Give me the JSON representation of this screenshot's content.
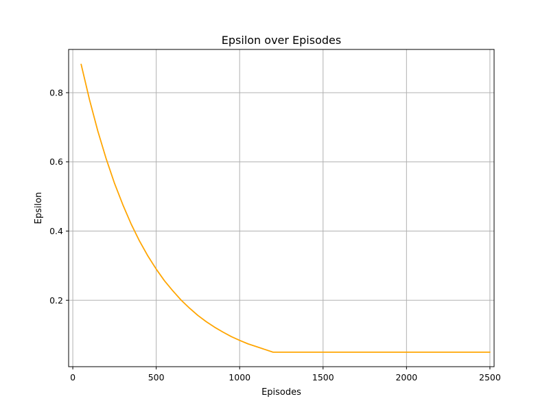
{
  "chart_data": {
    "type": "line",
    "title": "Epsilon over Episodes",
    "xlabel": "Episodes",
    "ylabel": "Epsilon",
    "xlim": [
      -25,
      2525
    ],
    "ylim": [
      0.008,
      0.925
    ],
    "xticks": [
      0,
      500,
      1000,
      1500,
      2000,
      2500
    ],
    "yticks": [
      0.2,
      0.4,
      0.6,
      0.8
    ],
    "grid": true,
    "series": [
      {
        "color": "#ffa500",
        "x": [
          50,
          100,
          150,
          200,
          250,
          300,
          350,
          400,
          450,
          500,
          550,
          600,
          650,
          700,
          750,
          800,
          850,
          900,
          950,
          1000,
          1050,
          1100,
          1150,
          1200,
          1250,
          1300,
          1350,
          1400,
          1450,
          1500,
          1550,
          1600,
          1650,
          1700,
          1750,
          1800,
          1850,
          1900,
          1950,
          2000,
          2050,
          2100,
          2150,
          2200,
          2250,
          2300,
          2350,
          2400,
          2450,
          2500
        ],
        "y": [
          0.882,
          0.78,
          0.689,
          0.609,
          0.538,
          0.476,
          0.42,
          0.371,
          0.328,
          0.29,
          0.256,
          0.227,
          0.2,
          0.177,
          0.156,
          0.138,
          0.122,
          0.108,
          0.095,
          0.084,
          0.074,
          0.066,
          0.058,
          0.05,
          0.05,
          0.05,
          0.05,
          0.05,
          0.05,
          0.05,
          0.05,
          0.05,
          0.05,
          0.05,
          0.05,
          0.05,
          0.05,
          0.05,
          0.05,
          0.05,
          0.05,
          0.05,
          0.05,
          0.05,
          0.05,
          0.05,
          0.05,
          0.05,
          0.05,
          0.05
        ]
      }
    ]
  }
}
